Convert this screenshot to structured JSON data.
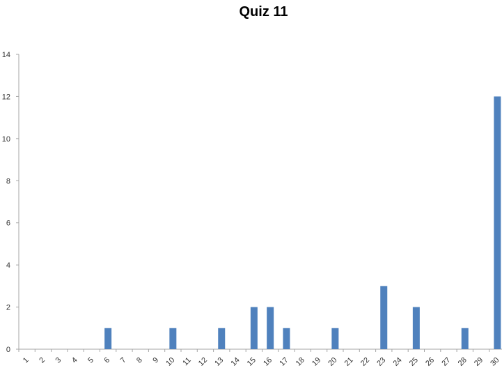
{
  "chart_data": {
    "type": "bar",
    "title": "Quiz 11",
    "xlabel": "",
    "ylabel": "",
    "ylim": [
      0,
      14
    ],
    "yticks": [
      0,
      2,
      4,
      6,
      8,
      10,
      12,
      14
    ],
    "grid": false,
    "legend": "none",
    "bar_color": "#4f81bd",
    "categories": [
      "1",
      "2",
      "3",
      "4",
      "5",
      "6",
      "7",
      "8",
      "9",
      "10",
      "11",
      "12",
      "13",
      "14",
      "15",
      "16",
      "17",
      "18",
      "19",
      "20",
      "21",
      "22",
      "23",
      "24",
      "25",
      "26",
      "27",
      "28",
      "29",
      "30"
    ],
    "values": [
      0,
      0,
      0,
      0,
      0,
      1,
      0,
      0,
      0,
      1,
      0,
      0,
      1,
      0,
      2,
      2,
      1,
      0,
      0,
      1,
      0,
      0,
      3,
      0,
      2,
      0,
      0,
      1,
      0,
      12
    ]
  }
}
